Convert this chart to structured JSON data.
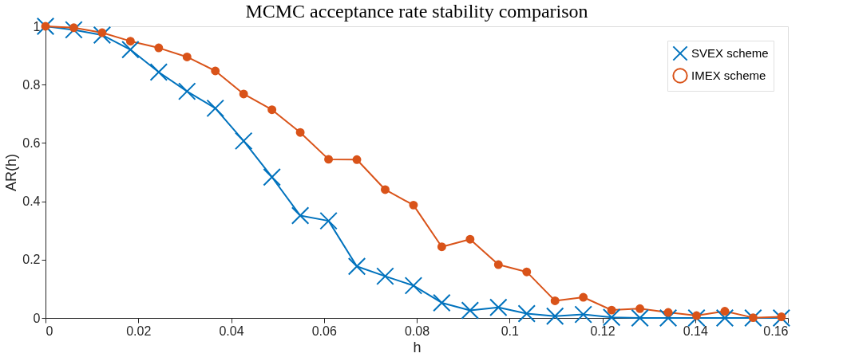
{
  "chart_data": {
    "type": "line",
    "title": "MCMC acceptance rate stability comparison",
    "xlabel": "h",
    "ylabel": "AR(h)",
    "x": [
      0,
      0.0061,
      0.0122,
      0.0183,
      0.0244,
      0.0305,
      0.0366,
      0.0427,
      0.0488,
      0.0549,
      0.061,
      0.0671,
      0.0732,
      0.0793,
      0.0854,
      0.0915,
      0.0976,
      0.1037,
      0.1098,
      0.1159,
      0.122,
      0.1281,
      0.1342,
      0.1403,
      0.1464,
      0.1525,
      0.1586
    ],
    "series": [
      {
        "name": "SVEX scheme",
        "color": "#0072bd",
        "marker": "cross",
        "values": [
          1.0,
          0.988,
          0.97,
          0.92,
          0.843,
          0.777,
          0.719,
          0.607,
          0.483,
          0.351,
          0.333,
          0.177,
          0.143,
          0.111,
          0.052,
          0.026,
          0.036,
          0.015,
          0.006,
          0.012,
          0.002,
          0,
          0,
          0,
          0,
          0,
          0
        ]
      },
      {
        "name": "IMEX scheme",
        "color": "#d95319",
        "marker": "circle",
        "values": [
          1.0,
          0.995,
          0.978,
          0.949,
          0.926,
          0.895,
          0.847,
          0.768,
          0.714,
          0.636,
          0.544,
          0.543,
          0.44,
          0.387,
          0.244,
          0.27,
          0.183,
          0.158,
          0.059,
          0.071,
          0.027,
          0.032,
          0.019,
          0.008,
          0.023,
          0.001,
          0.004
        ]
      }
    ],
    "xlim": [
      0,
      0.16
    ],
    "xticks": [
      0,
      0.02,
      0.04,
      0.06,
      0.08,
      0.1,
      0.12,
      0.14,
      0.16
    ],
    "ylim": [
      0,
      1
    ],
    "yticks": [
      0,
      0.2,
      0.4,
      0.6,
      0.8,
      1
    ],
    "grid": false,
    "legend": "top right",
    "line_style": "solid"
  }
}
